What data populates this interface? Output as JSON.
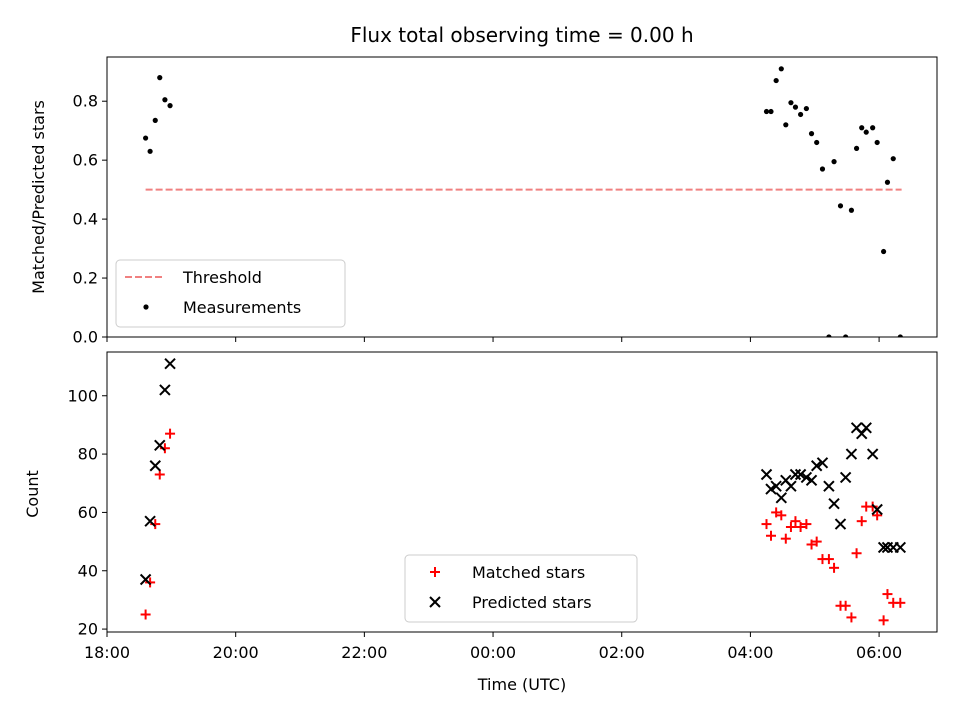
{
  "chart_data": [
    {
      "type": "scatter",
      "title": "Flux total observing time = 0.00 h",
      "xlabel": "",
      "ylabel": "Matched/Predicted stars",
      "xlim": [
        18.0,
        30.9
      ],
      "ylim": [
        0,
        0.95
      ],
      "yticks": [
        0.0,
        0.2,
        0.4,
        0.6,
        0.8
      ],
      "ytick_labels": [
        "0.0",
        "0.2",
        "0.4",
        "0.6",
        "0.8"
      ],
      "xticks": [
        18,
        20,
        22,
        24,
        26,
        28,
        30
      ],
      "legend_position": "lower-left",
      "series": [
        {
          "name": "Threshold",
          "style": "dashed-line",
          "color": "#f08080",
          "x": [
            18.6,
            30.35
          ],
          "y": [
            0.5,
            0.5
          ]
        },
        {
          "name": "Measurements",
          "style": "dot",
          "color": "#000000",
          "x": [
            18.6,
            18.67,
            18.75,
            18.82,
            18.9,
            18.98,
            28.25,
            28.32,
            28.4,
            28.48,
            28.55,
            28.63,
            28.7,
            28.78,
            28.87,
            28.95,
            29.03,
            29.12,
            29.22,
            29.3,
            29.4,
            29.48,
            29.57,
            29.65,
            29.73,
            29.8,
            29.9,
            29.97,
            30.07,
            30.13,
            30.22,
            30.33
          ],
          "y": [
            0.675,
            0.63,
            0.735,
            0.88,
            0.805,
            0.785,
            0.765,
            0.765,
            0.87,
            0.91,
            0.72,
            0.795,
            0.78,
            0.755,
            0.775,
            0.69,
            0.66,
            0.57,
            0.0,
            0.595,
            0.445,
            0.0,
            0.43,
            0.64,
            0.71,
            0.695,
            0.71,
            0.66,
            0.29,
            0.525,
            0.605,
            0.0
          ]
        }
      ]
    },
    {
      "type": "scatter",
      "title": "",
      "xlabel": "Time (UTC)",
      "ylabel": "Count",
      "xlim": [
        18.0,
        30.9
      ],
      "ylim": [
        19,
        115
      ],
      "yticks": [
        20,
        40,
        60,
        80,
        100
      ],
      "ytick_labels": [
        "20",
        "40",
        "60",
        "80",
        "100"
      ],
      "xticks": [
        18,
        20,
        22,
        24,
        26,
        28,
        30
      ],
      "xtick_labels": [
        "18:00",
        "20:00",
        "22:00",
        "00:00",
        "02:00",
        "04:00",
        "06:00"
      ],
      "legend_position": "lower-center",
      "series": [
        {
          "name": "Matched stars",
          "marker": "plus",
          "color": "#ff0000",
          "x": [
            18.6,
            18.67,
            18.75,
            18.82,
            18.9,
            18.98,
            28.25,
            28.32,
            28.4,
            28.48,
            28.55,
            28.63,
            28.7,
            28.78,
            28.87,
            28.95,
            29.03,
            29.12,
            29.22,
            29.3,
            29.4,
            29.48,
            29.57,
            29.65,
            29.73,
            29.8,
            29.9,
            29.97,
            30.07,
            30.13,
            30.22,
            30.33
          ],
          "y": [
            25,
            36,
            56,
            73,
            82,
            87,
            56,
            52,
            60,
            59,
            51,
            55,
            57,
            55,
            56,
            49,
            50,
            44,
            44,
            41,
            28,
            28,
            24,
            46,
            57,
            62,
            62,
            59,
            23,
            32,
            29,
            29
          ]
        },
        {
          "name": "Predicted stars",
          "marker": "x",
          "color": "#000000",
          "x": [
            18.6,
            18.67,
            18.75,
            18.82,
            18.9,
            18.98,
            28.25,
            28.32,
            28.4,
            28.48,
            28.55,
            28.63,
            28.7,
            28.78,
            28.87,
            28.95,
            29.03,
            29.12,
            29.22,
            29.3,
            29.4,
            29.48,
            29.57,
            29.65,
            29.73,
            29.8,
            29.9,
            29.97,
            30.07,
            30.13,
            30.22,
            30.33
          ],
          "y": [
            37,
            57,
            76,
            83,
            102,
            111,
            73,
            68,
            69,
            65,
            71,
            69,
            73,
            73,
            72,
            71,
            76,
            77,
            69,
            63,
            56,
            72,
            80,
            89,
            87,
            89,
            80,
            61,
            48,
            48,
            48,
            48
          ]
        }
      ]
    }
  ]
}
